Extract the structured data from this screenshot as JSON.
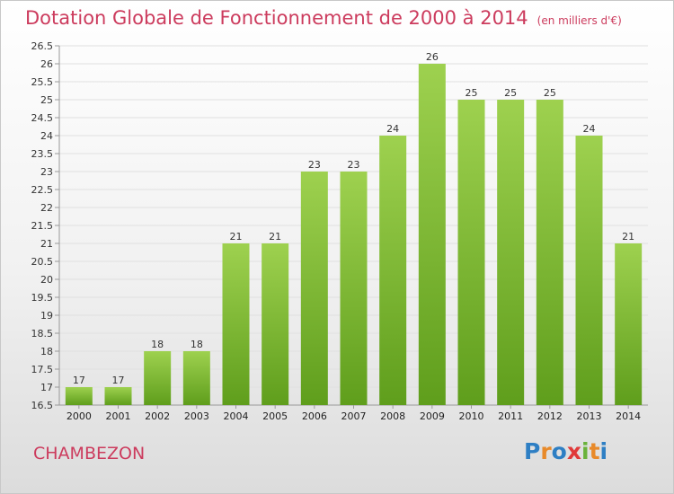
{
  "title": "Dotation Globale de Fonctionnement de 2000 à 2014",
  "unit_note": "(en milliers d'€)",
  "place_name": "CHAMBEZON",
  "logo": {
    "text": "Proxiti",
    "letters": [
      "P",
      "r",
      "o",
      "x",
      "i",
      "t",
      "i"
    ],
    "colors": [
      "#2e7fc4",
      "#e88a2a",
      "#2e7fc4",
      "#e03a3a",
      "#6ab23a",
      "#e88a2a",
      "#2e7fc4"
    ]
  },
  "colors": {
    "accent": "#cc3b5d",
    "bar": "#8cc63f",
    "bar_dark": "#5a9a1a"
  },
  "chart_data": {
    "type": "bar",
    "title": "Dotation Globale de Fonctionnement de 2000 à 2014",
    "categories": [
      "2000",
      "2001",
      "2002",
      "2003",
      "2004",
      "2005",
      "2006",
      "2007",
      "2008",
      "2009",
      "2010",
      "2011",
      "2012",
      "2013",
      "2014"
    ],
    "values": [
      17,
      17,
      18,
      18,
      21,
      21,
      23,
      23,
      24,
      26,
      25,
      25,
      25,
      24,
      21
    ],
    "ylim": [
      16.5,
      26.5
    ],
    "yticks": [
      "16.5",
      "17",
      "17.5",
      "18",
      "18.5",
      "19",
      "19.5",
      "20",
      "20.5",
      "21",
      "21.5",
      "22",
      "22.5",
      "23",
      "23.5",
      "24",
      "24.5",
      "25",
      "25.5",
      "26",
      "26.5"
    ],
    "grid": true,
    "xlabel": "",
    "ylabel": ""
  }
}
